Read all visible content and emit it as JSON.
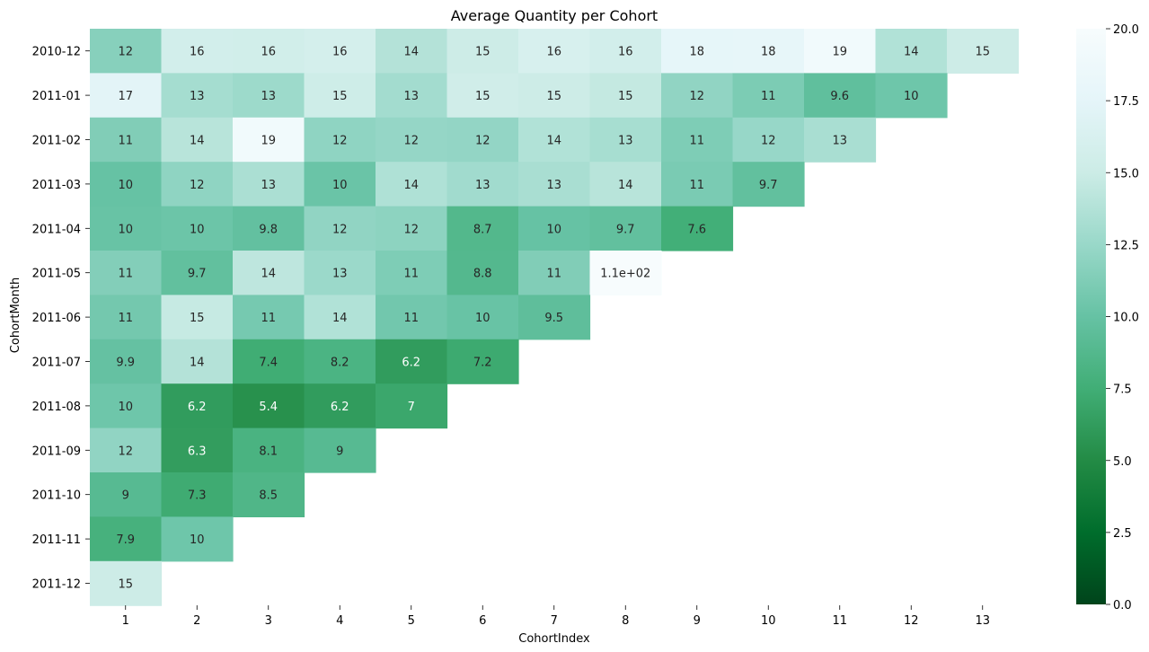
{
  "chart_data": {
    "type": "heatmap",
    "title": "Average Quantity per Cohort",
    "xlabel": "CohortIndex",
    "ylabel": "CohortMonth",
    "x_categories": [
      "1",
      "2",
      "3",
      "4",
      "5",
      "6",
      "7",
      "8",
      "9",
      "10",
      "11",
      "12",
      "13"
    ],
    "y_categories": [
      "2010-12",
      "2011-01",
      "2011-02",
      "2011-03",
      "2011-04",
      "2011-05",
      "2011-06",
      "2011-07",
      "2011-08",
      "2011-09",
      "2011-10",
      "2011-11",
      "2011-12"
    ],
    "values": [
      [
        11.6,
        15.6,
        15.5,
        15.8,
        13.8,
        15.1,
        16.1,
        15.6,
        17.7,
        17.8,
        19.2,
        13.7,
        15.1
      ],
      [
        17.3,
        13.1,
        12.7,
        15.2,
        13.0,
        15.4,
        15.1,
        14.6,
        12.1,
        11.1,
        9.6,
        10.4,
        null
      ],
      [
        11.3,
        14.0,
        19.2,
        12.0,
        12.3,
        12.2,
        13.7,
        13.2,
        11.2,
        12.4,
        13.3,
        null,
        null
      ],
      [
        10.0,
        12.0,
        13.4,
        10.2,
        13.6,
        12.9,
        13.3,
        14.0,
        11.0,
        9.7,
        null,
        null,
        null
      ],
      [
        10.1,
        10.3,
        9.8,
        12.1,
        11.9,
        8.7,
        10.0,
        9.7,
        7.6,
        null,
        null,
        null,
        null
      ],
      [
        11.4,
        9.7,
        14.3,
        12.6,
        11.2,
        8.8,
        11.3,
        110.0,
        null,
        null,
        null,
        null,
        null
      ],
      [
        10.7,
        14.7,
        10.8,
        13.7,
        10.6,
        10.1,
        9.5,
        null,
        null,
        null,
        null,
        null,
        null
      ],
      [
        9.9,
        13.8,
        7.4,
        8.2,
        6.2,
        7.2,
        null,
        null,
        null,
        null,
        null,
        null,
        null
      ],
      [
        10.4,
        6.2,
        5.4,
        6.2,
        7.0,
        null,
        null,
        null,
        null,
        null,
        null,
        null,
        null
      ],
      [
        12.1,
        6.3,
        8.1,
        9.0,
        null,
        null,
        null,
        null,
        null,
        null,
        null,
        null,
        null
      ],
      [
        9.0,
        7.3,
        8.5,
        null,
        null,
        null,
        null,
        null,
        null,
        null,
        null,
        null,
        null
      ],
      [
        7.9,
        10.4,
        null,
        null,
        null,
        null,
        null,
        null,
        null,
        null,
        null,
        null,
        null
      ],
      [
        15.1,
        null,
        null,
        null,
        null,
        null,
        null,
        null,
        null,
        null,
        null,
        null,
        null
      ]
    ],
    "labels": [
      [
        "12",
        "16",
        "16",
        "16",
        "14",
        "15",
        "16",
        "16",
        "18",
        "18",
        "19",
        "14",
        "15"
      ],
      [
        "17",
        "13",
        "13",
        "15",
        "13",
        "15",
        "15",
        "15",
        "12",
        "11",
        "9.6",
        "10",
        ""
      ],
      [
        "11",
        "14",
        "19",
        "12",
        "12",
        "12",
        "14",
        "13",
        "11",
        "12",
        "13",
        "",
        ""
      ],
      [
        "10",
        "12",
        "13",
        "10",
        "14",
        "13",
        "13",
        "14",
        "11",
        "9.7",
        "",
        "",
        ""
      ],
      [
        "10",
        "10",
        "9.8",
        "12",
        "12",
        "8.7",
        "10",
        "9.7",
        "7.6",
        "",
        "",
        "",
        ""
      ],
      [
        "11",
        "9.7",
        "14",
        "13",
        "11",
        "8.8",
        "11",
        "1.1e+02",
        "",
        "",
        "",
        "",
        ""
      ],
      [
        "11",
        "15",
        "11",
        "14",
        "11",
        "10",
        "9.5",
        "",
        "",
        "",
        "",
        "",
        ""
      ],
      [
        "9.9",
        "14",
        "7.4",
        "8.2",
        "6.2",
        "7.2",
        "",
        "",
        "",
        "",
        "",
        "",
        ""
      ],
      [
        "10",
        "6.2",
        "5.4",
        "6.2",
        "7",
        "",
        "",
        "",
        "",
        "",
        "",
        "",
        ""
      ],
      [
        "12",
        "6.3",
        "8.1",
        "9",
        "",
        "",
        "",
        "",
        "",
        "",
        "",
        "",
        ""
      ],
      [
        "9",
        "7.3",
        "8.5",
        "",
        "",
        "",
        "",
        "",
        "",
        "",
        "",
        "",
        ""
      ],
      [
        "7.9",
        "10",
        "",
        "",
        "",
        "",
        "",
        "",
        "",
        "",
        "",
        "",
        ""
      ],
      [
        "15",
        "",
        "",
        "",
        "",
        "",
        "",
        "",
        "",
        "",
        "",
        "",
        ""
      ]
    ],
    "vmin": 0,
    "vmax": 20,
    "colormap": "BuGn_r",
    "colorbar_ticks": [
      "0.0",
      "2.5",
      "5.0",
      "7.5",
      "10.0",
      "12.5",
      "15.0",
      "17.5",
      "20.0"
    ],
    "colorbar_values": [
      0,
      2.5,
      5.0,
      7.5,
      10.0,
      12.5,
      15.0,
      17.5,
      20.0
    ]
  }
}
